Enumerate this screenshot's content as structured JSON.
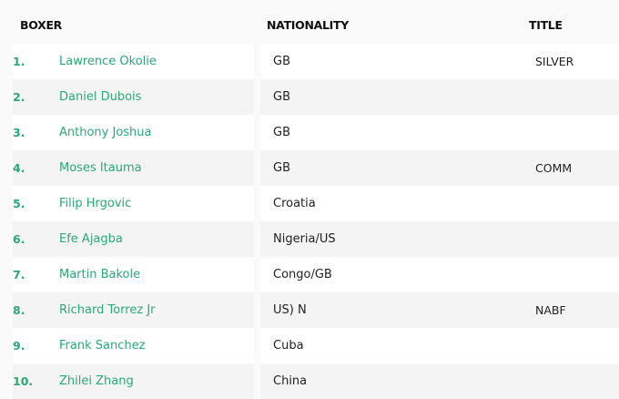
{
  "headers": {
    "boxer": "BOXER",
    "nationality": "NATIONALITY",
    "title": "TITLE"
  },
  "accent_color": "#2aa876",
  "rows": [
    {
      "rank": "1.",
      "name": "Lawrence Okolie",
      "nationality": "GB",
      "title": "SILVER"
    },
    {
      "rank": "2.",
      "name": "Daniel Dubois",
      "nationality": "GB",
      "title": ""
    },
    {
      "rank": "3.",
      "name": "Anthony Joshua",
      "nationality": "GB",
      "title": ""
    },
    {
      "rank": "4.",
      "name": "Moses Itauma",
      "nationality": "GB",
      "title": "COMM"
    },
    {
      "rank": "5.",
      "name": "Filip Hrgovic",
      "nationality": "Croatia",
      "title": ""
    },
    {
      "rank": "6.",
      "name": "Efe Ajagba",
      "nationality": "Nigeria/US",
      "title": ""
    },
    {
      "rank": "7.",
      "name": "Martin Bakole",
      "nationality": "Congo/GB",
      "title": ""
    },
    {
      "rank": "8.",
      "name": "Richard Torrez Jr",
      "nationality": "US) N",
      "title": "NABF"
    },
    {
      "rank": "9.",
      "name": "Frank Sanchez",
      "nationality": "Cuba",
      "title": ""
    },
    {
      "rank": "10.",
      "name": "Zhilei Zhang",
      "nationality": "China",
      "title": ""
    }
  ]
}
